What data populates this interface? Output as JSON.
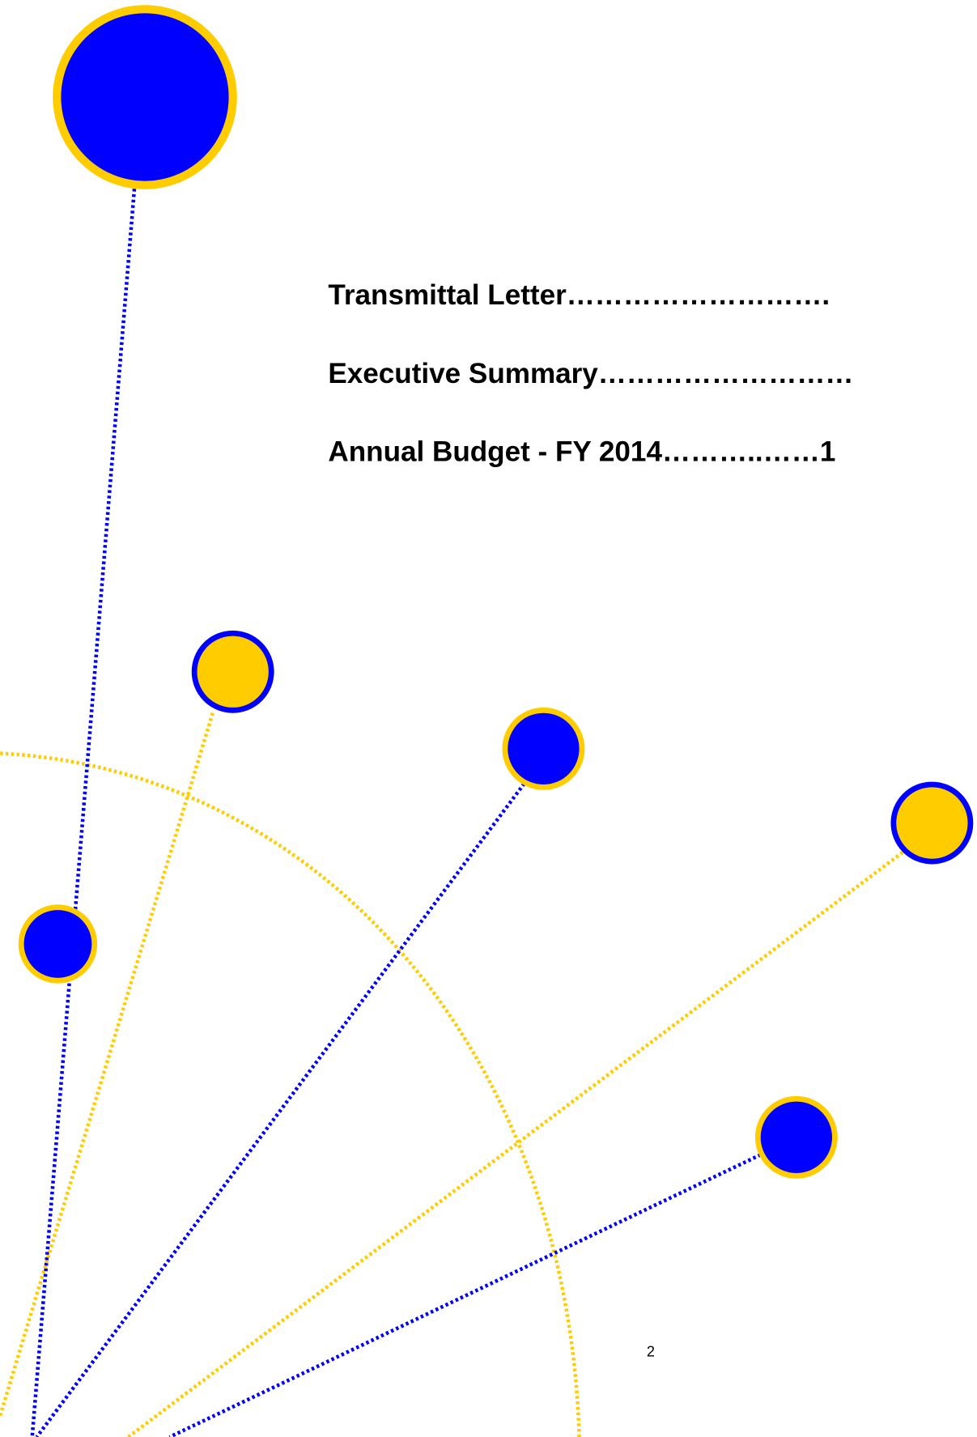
{
  "toc": {
    "entries": [
      "Transmittal Letter……………………….",
      "Executive Summary………………………",
      "Annual Budget - FY 2014………..……1"
    ]
  },
  "page_number": "2"
}
